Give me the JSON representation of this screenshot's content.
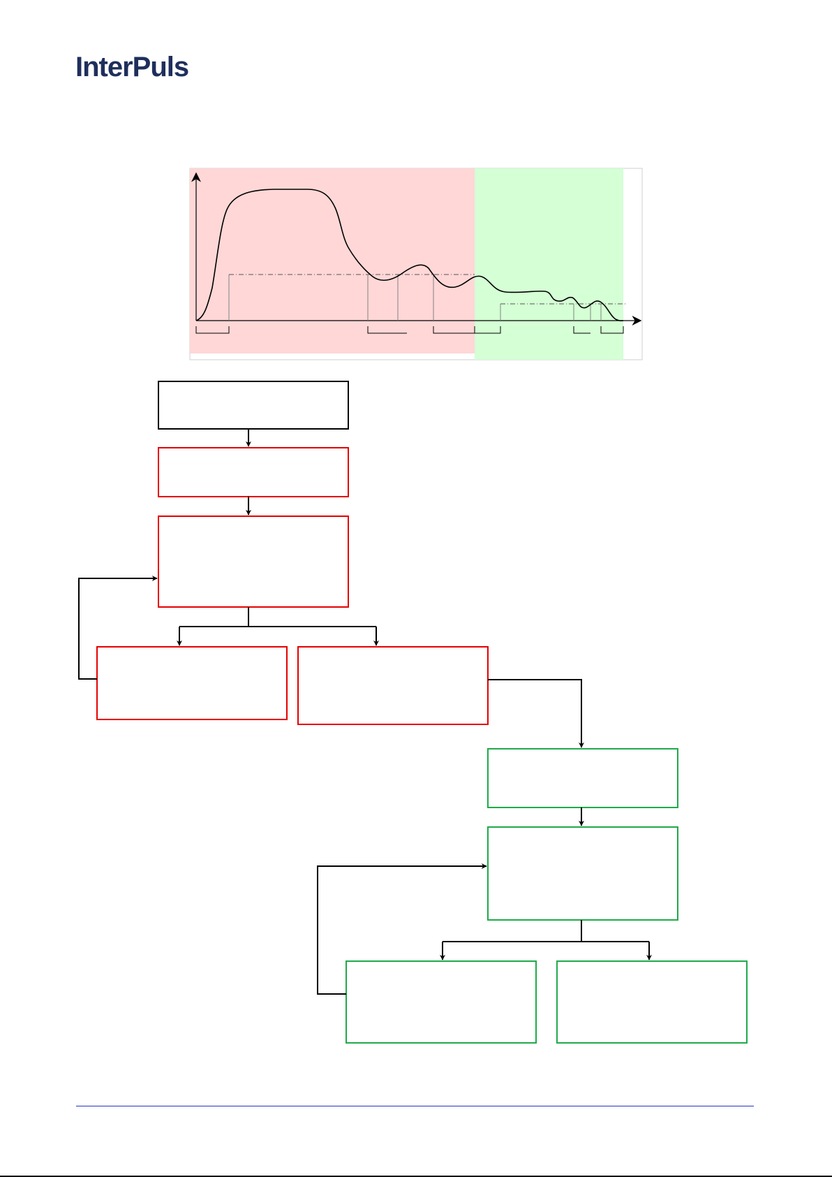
{
  "header": {
    "logo_text": "InterPuls"
  },
  "colors": {
    "brand": "#1f2f5c",
    "red_zone": "#ffd7d7",
    "green_zone": "#d5ffd5",
    "red_box": "#e60000",
    "green_box": "#1faa4a",
    "black_box": "#000000",
    "footer_rule": "#2233cc"
  },
  "diagram": {
    "nodes": [
      {
        "id": "start",
        "style": "black",
        "label": ""
      },
      {
        "id": "red-step-1",
        "style": "red",
        "label": ""
      },
      {
        "id": "red-step-2",
        "style": "red",
        "label": ""
      },
      {
        "id": "red-branch-left",
        "style": "red",
        "label": ""
      },
      {
        "id": "red-branch-right",
        "style": "red",
        "label": ""
      },
      {
        "id": "green-step-1",
        "style": "green",
        "label": ""
      },
      {
        "id": "green-step-2",
        "style": "green",
        "label": ""
      },
      {
        "id": "green-branch-left",
        "style": "green",
        "label": ""
      },
      {
        "id": "green-branch-right",
        "style": "green",
        "label": ""
      }
    ]
  }
}
